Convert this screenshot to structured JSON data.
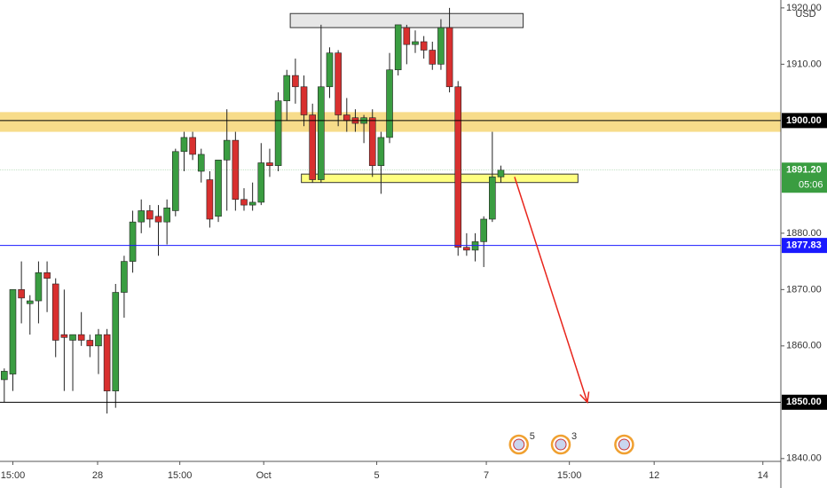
{
  "chart_data": {
    "type": "candlestick",
    "currency": "USD",
    "up_color": "#3a9d41",
    "down_color": "#d8302f",
    "open": [
      1854,
      1855,
      1870,
      1867.5,
      1868,
      1873,
      1871,
      1862,
      1861,
      1862,
      1861,
      1860,
      1862,
      1852,
      1869.5,
      1875,
      1882,
      1884,
      1883,
      1882,
      1884,
      1894.5,
      1897,
      1891,
      1889.5,
      1883,
      1893,
      1896.5,
      1886,
      1885,
      1885.5,
      1892.5,
      1892,
      1903.5,
      1908,
      1906,
      1901,
      1889.5,
      1906,
      1912,
      1901,
      1900.5,
      1899.5,
      1900.5,
      1892,
      1897,
      1909,
      1916.5,
      1913.5,
      1914,
      1912.5,
      1910,
      1916.5,
      1906,
      1877.5,
      1877,
      1878.5,
      1882.5,
      1890
    ],
    "high": [
      1856,
      1870,
      1875,
      1869,
      1875,
      1875,
      1872,
      1870,
      1862,
      1866,
      1862,
      1863,
      1863,
      1871,
      1876,
      1884,
      1886,
      1885,
      1885,
      1886,
      1895,
      1898,
      1898,
      1895,
      1891,
      1893,
      1902,
      1898,
      1888,
      1889,
      1896,
      1895,
      1905,
      1909,
      1911,
      1908,
      1903,
      1917,
      1913,
      1912.5,
      1904,
      1902,
      1901,
      1902,
      1898,
      1912,
      1917,
      1917,
      1916,
      1915,
      1914,
      1918,
      1920,
      1907,
      1880,
      1880,
      1883,
      1898,
      1892
    ],
    "low": [
      1850,
      1852,
      1864,
      1862,
      1864,
      1866,
      1858,
      1852,
      1852,
      1860,
      1858,
      1855,
      1848,
      1849,
      1865,
      1873,
      1880,
      1881,
      1876,
      1878,
      1883,
      1891,
      1893,
      1889,
      1881,
      1882,
      1884,
      1884,
      1884,
      1884,
      1885,
      1890,
      1891,
      1900,
      1903,
      1899,
      1889,
      1889,
      1904,
      1899,
      1898,
      1898,
      1896,
      1890,
      1887,
      1896,
      1908,
      1910,
      1912,
      1911,
      1909,
      1909,
      1905,
      1876,
      1876,
      1875,
      1874,
      1882,
      1889
    ],
    "close": [
      1855.5,
      1870,
      1868.5,
      1868,
      1873,
      1872,
      1861,
      1861.5,
      1862,
      1861,
      1860,
      1862,
      1852,
      1869.5,
      1875,
      1882,
      1884,
      1882.5,
      1882,
      1884.5,
      1894.5,
      1897,
      1894,
      1894,
      1882.5,
      1893,
      1896.5,
      1886,
      1885,
      1885.5,
      1892.5,
      1892,
      1903.5,
      1908,
      1906,
      1901,
      1889.5,
      1906,
      1912,
      1901,
      1900,
      1899.5,
      1900.5,
      1892,
      1897,
      1909,
      1917,
      1913.5,
      1914,
      1912.5,
      1910,
      1916.5,
      1906,
      1877.5,
      1877,
      1878.5,
      1882.5,
      1890,
      1891.2
    ],
    "ylim": [
      1839.5,
      1921.4
    ],
    "yticks": [
      {
        "value": 1840,
        "label": "1840.00"
      },
      {
        "value": 1860,
        "label": "1860.00"
      },
      {
        "value": 1870,
        "label": "1870.00"
      },
      {
        "value": 1880,
        "label": "1880.00"
      },
      {
        "value": 1910,
        "label": "1910.00"
      },
      {
        "value": 1920,
        "label": "1920.00"
      }
    ],
    "xlim": [
      -0.5,
      90.7
    ],
    "xticks": [
      {
        "value": 1,
        "label": "15:00"
      },
      {
        "value": 10.9,
        "label": "28"
      },
      {
        "value": 20.5,
        "label": "15:00"
      },
      {
        "value": 30.3,
        "label": "Oct"
      },
      {
        "value": 43.5,
        "label": "5"
      },
      {
        "value": 56.3,
        "label": "7"
      },
      {
        "value": 66,
        "label": "15:00"
      },
      {
        "value": 75.9,
        "label": "12"
      },
      {
        "value": 88.6,
        "label": "14"
      }
    ],
    "levels": [
      {
        "value": 1900,
        "label": "1900.00",
        "color": "#000000"
      },
      {
        "value": 1850,
        "label": "1850.00",
        "color": "#000000"
      },
      {
        "value": 1877.83,
        "label": "1877.83",
        "color": "#1a1aff"
      },
      {
        "value": 1891.2,
        "label": "1891.20",
        "color": "#3a9d41",
        "countdown": "05:06"
      }
    ],
    "zones": [
      {
        "ymin": 1898,
        "ymax": 1901.5,
        "color": "#f7dc8a"
      },
      {
        "ymin": 1889,
        "ymax": 1890.5,
        "xmin": 34.7,
        "xmax": 67,
        "color": "#ffff80"
      },
      {
        "ymin": 1916.5,
        "ymax": 1919,
        "xmin": 33.4,
        "xmax": 60.6,
        "color": "#e6e6e6"
      }
    ],
    "arrow": {
      "x1": 59.6,
      "y1": 1890,
      "x2": 68.1,
      "y2": 1850,
      "color": "#e8251c"
    },
    "events": [
      {
        "x": 60.1,
        "count": "5"
      },
      {
        "x": 65,
        "count": "3"
      },
      {
        "x": 72.4
      }
    ]
  }
}
